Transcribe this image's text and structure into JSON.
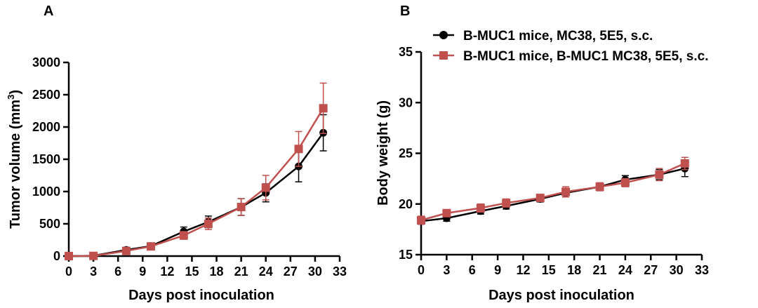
{
  "colors": {
    "mc38": "#000000",
    "bmuc1": "#c0504d",
    "axis": "#000000"
  },
  "chart_data": [
    {
      "type": "line",
      "panel": "A",
      "xlabel": "Days post inoculation",
      "ylabel": "Tumor volume (mm",
      "ylabel_sup": "3",
      "ylabel_close": ")",
      "xlim": [
        0,
        33
      ],
      "ylim": [
        0,
        3000
      ],
      "xticks": [
        0,
        3,
        6,
        9,
        12,
        15,
        18,
        21,
        24,
        27,
        30,
        33
      ],
      "yticks": [
        0,
        500,
        1000,
        1500,
        2000,
        2500,
        3000
      ],
      "grid": false,
      "series": [
        {
          "name": "B-MUC1 mice, MC38, 5E5, s.c.",
          "marker": "circle",
          "color": "#000000",
          "x": [
            0,
            3,
            7,
            10,
            14,
            17,
            21,
            24,
            28,
            31
          ],
          "y": [
            0,
            5,
            95,
            155,
            380,
            530,
            760,
            980,
            1390,
            1910
          ],
          "err": [
            0,
            3,
            20,
            25,
            70,
            90,
            130,
            140,
            240,
            280
          ]
        },
        {
          "name": "B-MUC1 mice, B-MUC1 MC38, 5E5, s.c.",
          "marker": "square",
          "color": "#c0504d",
          "x": [
            0,
            3,
            7,
            10,
            14,
            17,
            21,
            24,
            28,
            31
          ],
          "y": [
            0,
            3,
            80,
            150,
            320,
            500,
            760,
            1060,
            1660,
            2290
          ],
          "err": [
            0,
            3,
            20,
            25,
            60,
            90,
            130,
            190,
            270,
            390
          ]
        }
      ]
    },
    {
      "type": "line",
      "panel": "B",
      "xlabel": "Days post inoculation",
      "ylabel": "Body weight (g)",
      "xlim": [
        0,
        33
      ],
      "ylim": [
        15,
        35
      ],
      "xticks": [
        0,
        3,
        6,
        9,
        12,
        15,
        18,
        21,
        24,
        27,
        30,
        33
      ],
      "yticks": [
        15,
        20,
        25,
        30,
        35
      ],
      "grid": false,
      "legend": "top",
      "series": [
        {
          "name": "B-MUC1 mice, MC38, 5E5, s.c.",
          "marker": "circle",
          "color": "#000000",
          "x": [
            0,
            3,
            7,
            10,
            14,
            17,
            21,
            24,
            28,
            31
          ],
          "y": [
            18.3,
            18.6,
            19.3,
            19.8,
            20.5,
            21.1,
            21.7,
            22.4,
            22.9,
            23.5
          ],
          "err": [
            0.3,
            0.3,
            0.3,
            0.3,
            0.3,
            0.4,
            0.3,
            0.4,
            0.5,
            0.8
          ]
        },
        {
          "name": "B-MUC1 mice, B-MUC1 MC38, 5E5, s.c.",
          "marker": "square",
          "color": "#c0504d",
          "x": [
            0,
            3,
            7,
            10,
            14,
            17,
            21,
            24,
            28,
            31
          ],
          "y": [
            18.4,
            19.1,
            19.6,
            20.1,
            20.6,
            21.2,
            21.7,
            22.1,
            22.9,
            24.0
          ],
          "err": [
            0.4,
            0.3,
            0.4,
            0.4,
            0.3,
            0.5,
            0.4,
            0.4,
            0.6,
            0.6
          ]
        }
      ]
    }
  ]
}
